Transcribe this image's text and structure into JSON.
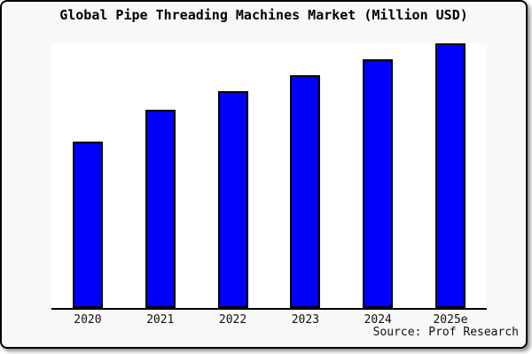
{
  "title": "Global Pipe Threading Machines Market (Million USD)",
  "source_credit": "Source: Prof Research",
  "colors": {
    "figure_background": "#f8f8f8",
    "plot_background": "#ffffff",
    "bar_fill": "#0000ff",
    "bar_edge": "#000000",
    "axis_line": "#000000",
    "text": "#000000"
  },
  "chart_data": {
    "type": "bar",
    "title": "Global Pipe Threading Machines Market (Million USD)",
    "categories": [
      "2020",
      "2021",
      "2022",
      "2023",
      "2024",
      "2025e"
    ],
    "values": [
      63,
      75,
      82,
      88,
      94,
      100
    ],
    "units": "relative height (no y-axis scale shown; normalized to 2025e = 100)",
    "xlabel": "",
    "ylabel": "",
    "ylim": [
      0,
      100.7
    ],
    "grid": false,
    "legend": false,
    "y_axis_ticks_visible": false,
    "bar_width_fraction": 0.42,
    "annotations": [
      "Source: Prof Research"
    ]
  }
}
